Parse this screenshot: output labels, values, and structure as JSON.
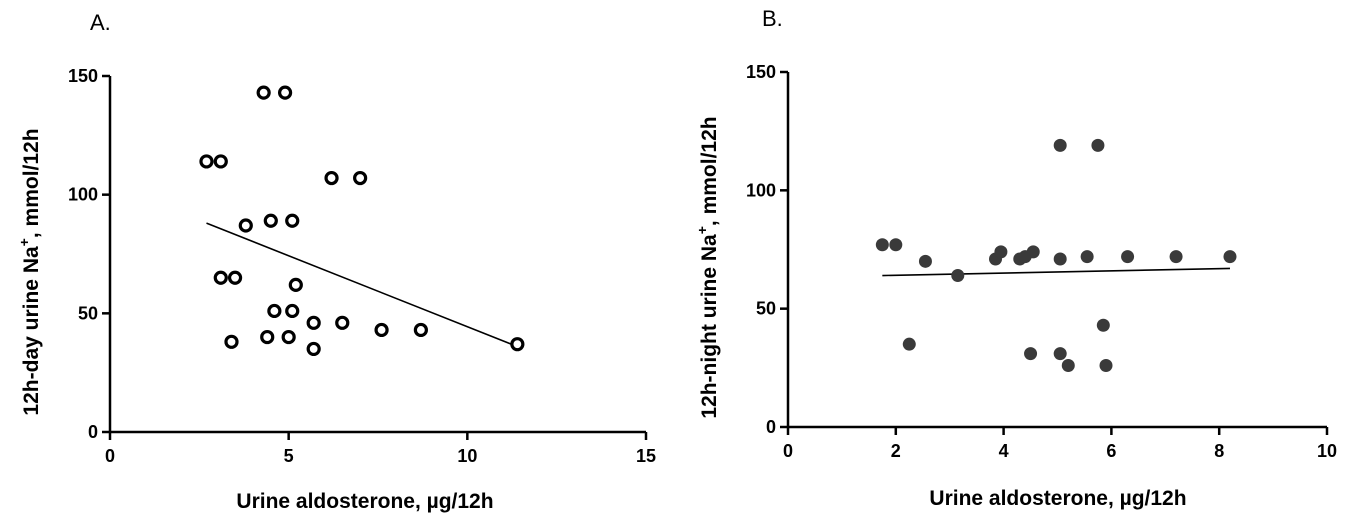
{
  "charts": [
    {
      "panel": "A.",
      "type": "scatter",
      "marker": "open-circle",
      "xlabel": "Urine aldosterone,  µg/12h",
      "ylabel_prefix": "12h-day urine Na",
      "ylabel_sup": "+",
      "ylabel_suffix": ", mmol/12h",
      "xlim": [
        0,
        15
      ],
      "ylim": [
        0,
        150
      ],
      "xticks": [
        0,
        5,
        10,
        15
      ],
      "yticks": [
        0,
        50,
        100,
        150
      ],
      "points": [
        {
          "x": 2.7,
          "y": 114
        },
        {
          "x": 3.1,
          "y": 114
        },
        {
          "x": 4.3,
          "y": 143
        },
        {
          "x": 4.9,
          "y": 143
        },
        {
          "x": 3.8,
          "y": 87
        },
        {
          "x": 4.5,
          "y": 89
        },
        {
          "x": 5.1,
          "y": 89
        },
        {
          "x": 6.2,
          "y": 107
        },
        {
          "x": 7.0,
          "y": 107
        },
        {
          "x": 3.1,
          "y": 65
        },
        {
          "x": 3.5,
          "y": 65
        },
        {
          "x": 5.2,
          "y": 62
        },
        {
          "x": 4.6,
          "y": 51
        },
        {
          "x": 5.1,
          "y": 51
        },
        {
          "x": 5.7,
          "y": 46
        },
        {
          "x": 6.5,
          "y": 46
        },
        {
          "x": 7.6,
          "y": 43
        },
        {
          "x": 8.7,
          "y": 43
        },
        {
          "x": 3.4,
          "y": 38
        },
        {
          "x": 4.4,
          "y": 40
        },
        {
          "x": 5.0,
          "y": 40
        },
        {
          "x": 5.7,
          "y": 35
        },
        {
          "x": 11.4,
          "y": 37
        }
      ],
      "trend": {
        "x": [
          2.7,
          11.4
        ],
        "y": [
          88,
          36
        ]
      }
    },
    {
      "panel": "B.",
      "type": "scatter",
      "marker": "filled-circle",
      "xlabel": "Urine aldosterone, µg/12h",
      "ylabel_prefix": "12h-night urine Na",
      "ylabel_sup": "+",
      "ylabel_suffix": ", mmol/12h",
      "xlim": [
        0,
        10
      ],
      "ylim": [
        0,
        150
      ],
      "xticks": [
        0,
        2,
        4,
        6,
        8,
        10
      ],
      "yticks": [
        0,
        50,
        100,
        150
      ],
      "points": [
        {
          "x": 1.75,
          "y": 77
        },
        {
          "x": 2.0,
          "y": 77
        },
        {
          "x": 2.55,
          "y": 70
        },
        {
          "x": 2.25,
          "y": 35
        },
        {
          "x": 3.15,
          "y": 64
        },
        {
          "x": 3.85,
          "y": 71
        },
        {
          "x": 3.95,
          "y": 74
        },
        {
          "x": 4.3,
          "y": 71
        },
        {
          "x": 4.4,
          "y": 72
        },
        {
          "x": 4.55,
          "y": 74
        },
        {
          "x": 4.5,
          "y": 31
        },
        {
          "x": 5.05,
          "y": 71
        },
        {
          "x": 5.05,
          "y": 119
        },
        {
          "x": 5.05,
          "y": 31
        },
        {
          "x": 5.2,
          "y": 26
        },
        {
          "x": 5.55,
          "y": 72
        },
        {
          "x": 5.75,
          "y": 119
        },
        {
          "x": 5.85,
          "y": 43
        },
        {
          "x": 5.9,
          "y": 26
        },
        {
          "x": 6.3,
          "y": 72
        },
        {
          "x": 7.2,
          "y": 72
        },
        {
          "x": 8.2,
          "y": 72
        }
      ],
      "trend": {
        "x": [
          1.75,
          8.2
        ],
        "y": [
          64,
          67
        ]
      }
    }
  ]
}
